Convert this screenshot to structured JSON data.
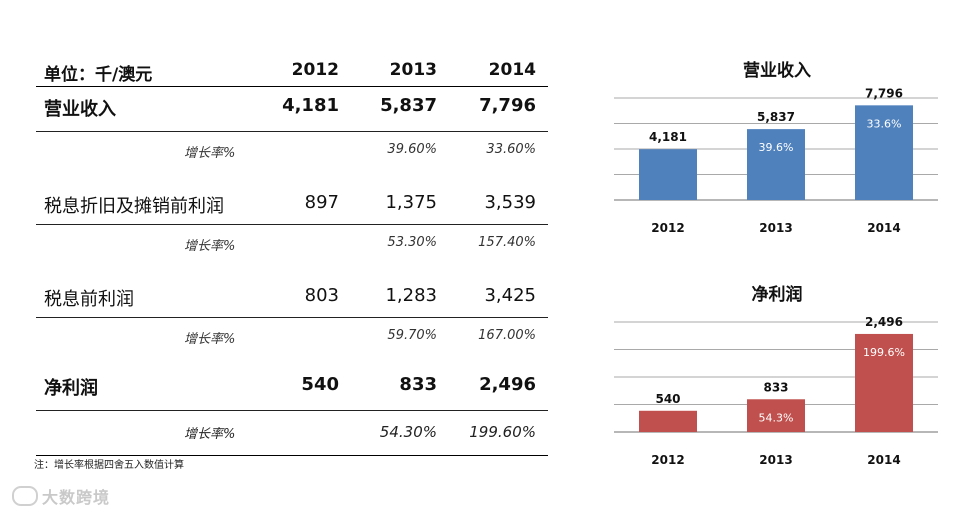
{
  "table": {
    "header": {
      "unit": "单位：千/澳元",
      "years": [
        "2012",
        "2013",
        "2014"
      ]
    },
    "rows": [
      {
        "label": "营业收入",
        "values": [
          "4,181",
          "5,837",
          "7,796"
        ]
      },
      {
        "label": "增长率%",
        "values": [
          "",
          "39.60%",
          "33.60%"
        ]
      },
      {
        "label": "税息折旧及摊销前利润",
        "values": [
          "897",
          "1,375",
          "3,539"
        ]
      },
      {
        "label": "增长率%",
        "values": [
          "",
          "53.30%",
          "157.40%"
        ]
      },
      {
        "label": "税息前利润",
        "values": [
          "803",
          "1,283",
          "3,425"
        ]
      },
      {
        "label": "增长率%",
        "values": [
          "",
          "59.70%",
          "167.00%"
        ]
      },
      {
        "label": "净利润",
        "values": [
          "540",
          "833",
          "2,496"
        ]
      },
      {
        "label": "增长率%",
        "values": [
          "",
          "54.30%",
          "199.60%"
        ]
      }
    ],
    "note": "注：增长率根据四舍五入数值计算"
  },
  "watermark": "大数跨境",
  "colors": {
    "revenue_bar": "#4f81bd",
    "profit_bar": "#c0504d",
    "grid": "#8c8c8c"
  },
  "chart_data": [
    {
      "type": "bar",
      "title": "营业收入",
      "categories": [
        "2012",
        "2013",
        "2014"
      ],
      "values": [
        4181,
        5837,
        7796
      ],
      "value_labels": [
        "4,181",
        "5,837",
        "7,796"
      ],
      "inner_labels": [
        "",
        "39.6%",
        "33.6%"
      ],
      "ylim": [
        0,
        8400
      ],
      "gridlines": 4,
      "xlabel": "",
      "ylabel": ""
    },
    {
      "type": "bar",
      "title": "净利润",
      "categories": [
        "2012",
        "2013",
        "2014"
      ],
      "values": [
        540,
        833,
        2496
      ],
      "value_labels": [
        "540",
        "833",
        "2,496"
      ],
      "inner_labels": [
        "",
        "54.3%",
        "199.6%"
      ],
      "ylim": [
        0,
        2800
      ],
      "gridlines": 4,
      "xlabel": "",
      "ylabel": ""
    }
  ]
}
